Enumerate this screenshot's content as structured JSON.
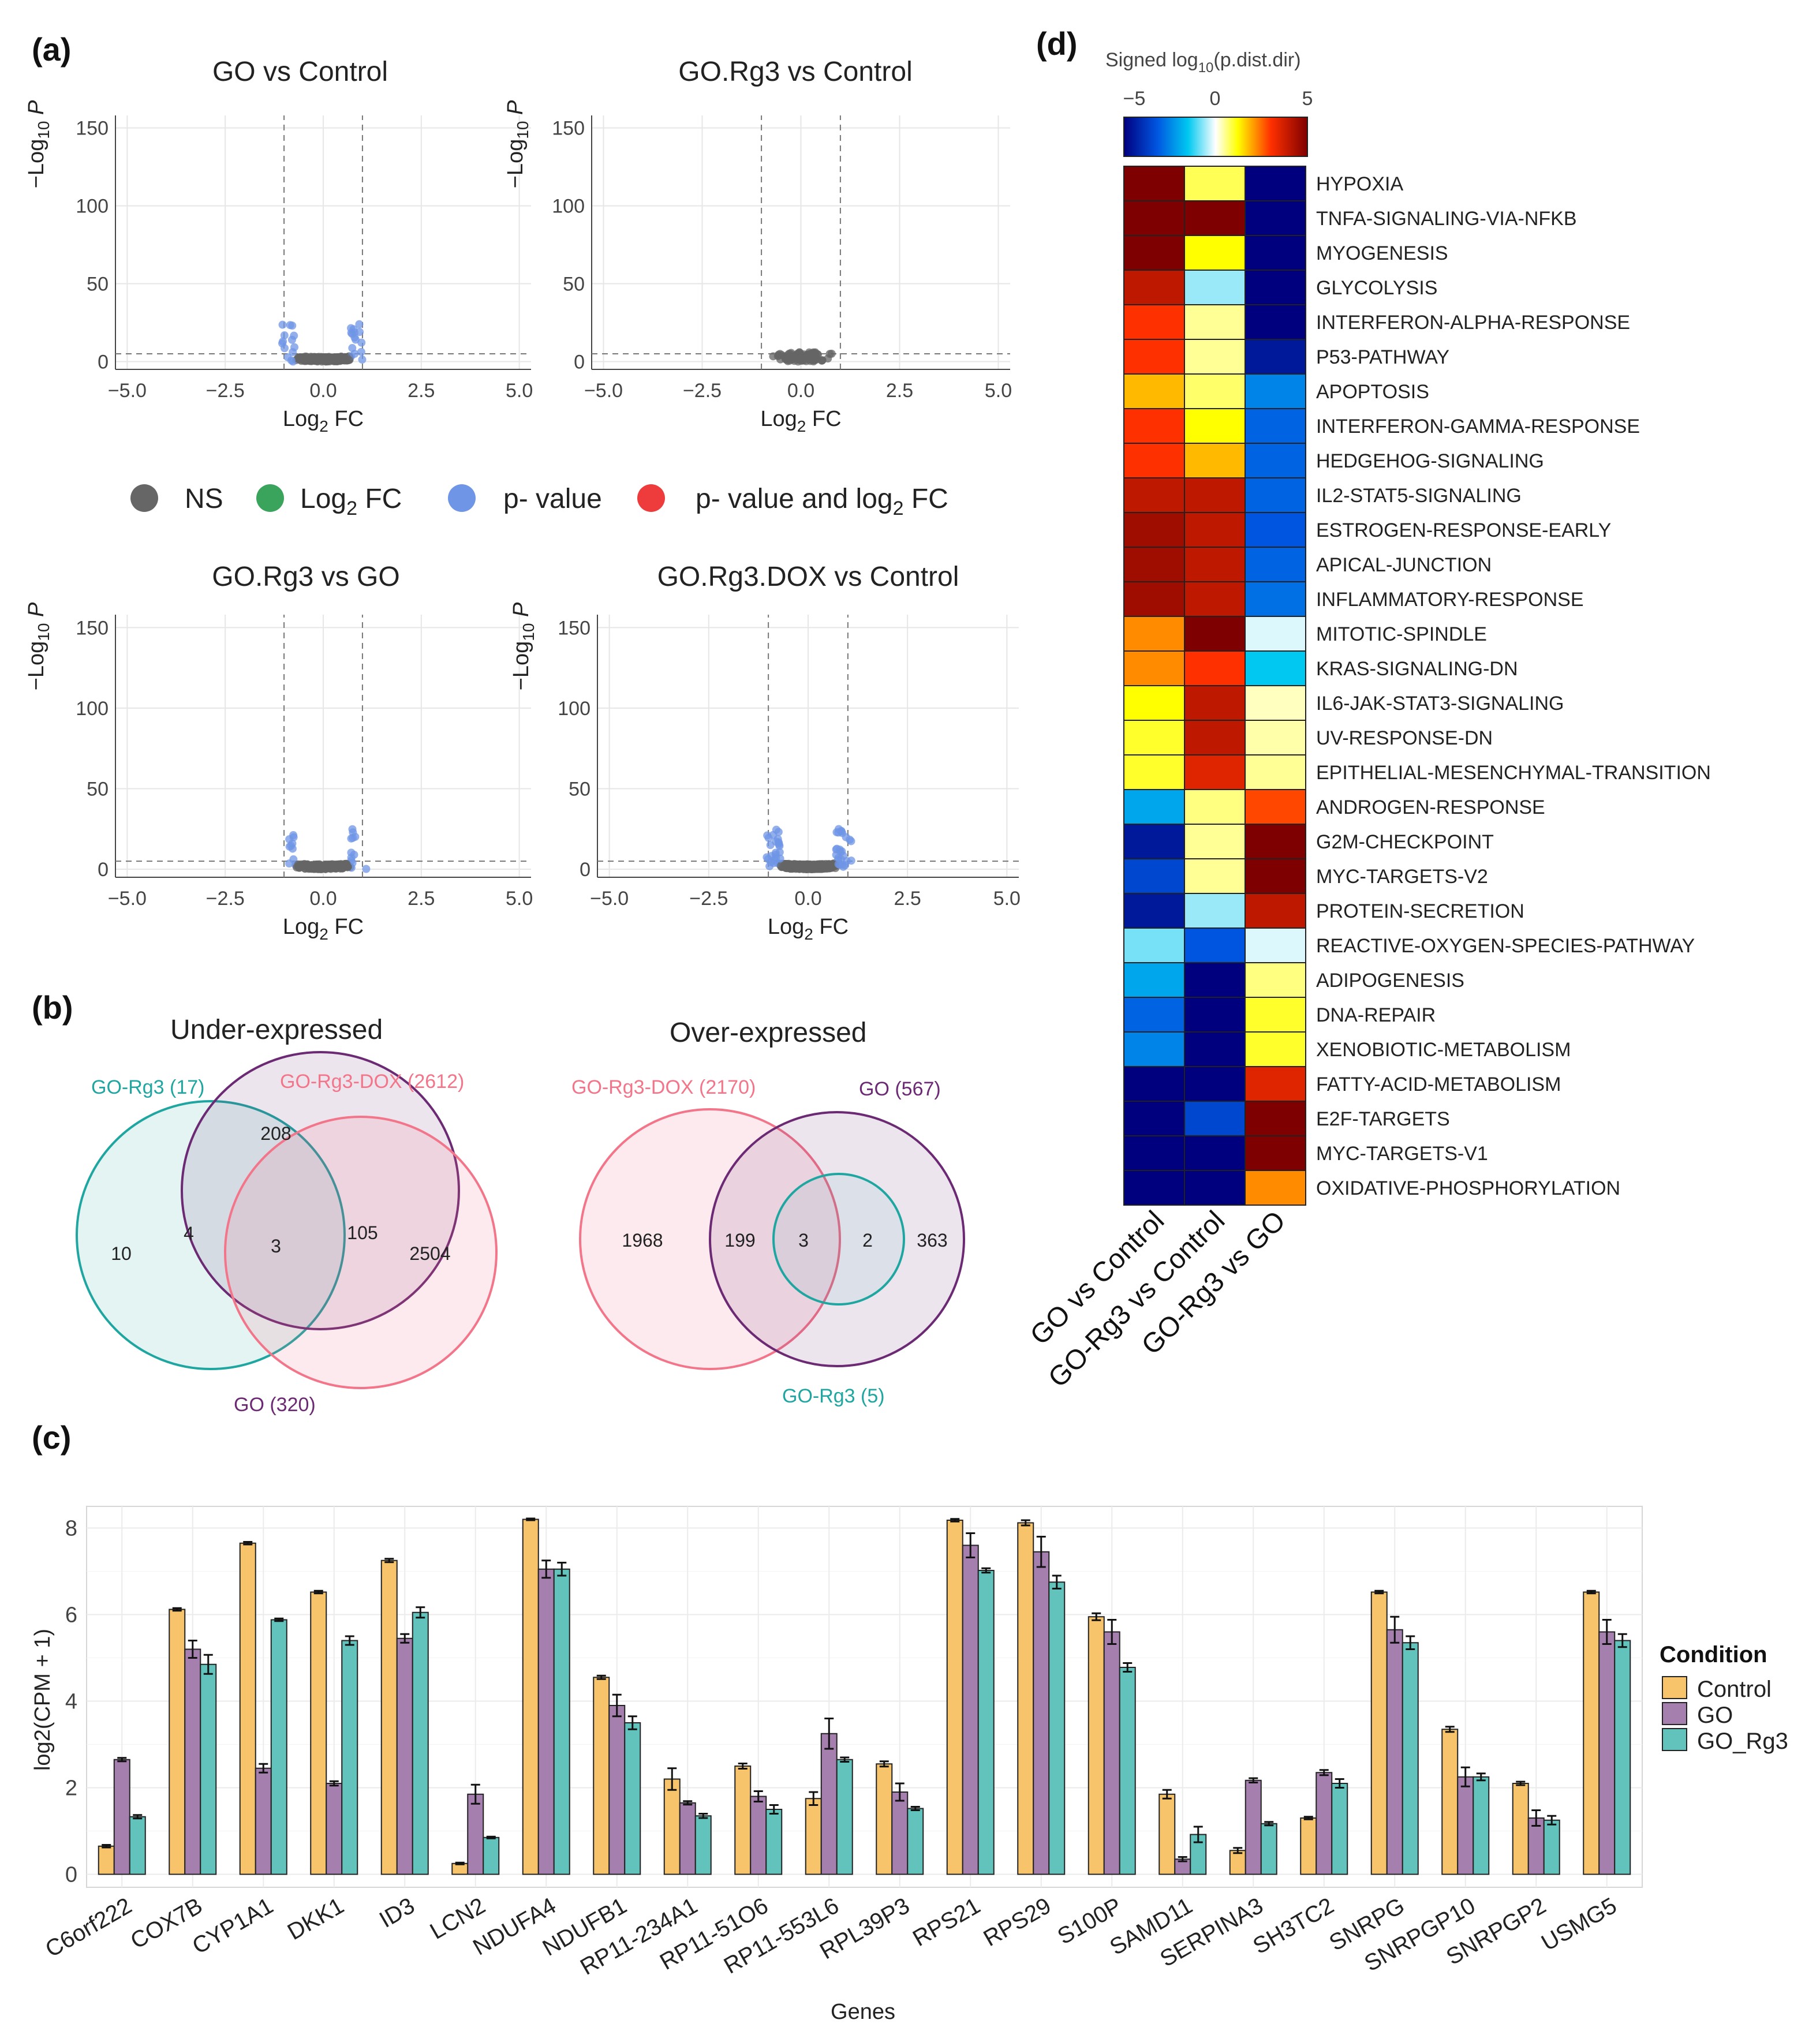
{
  "panels": {
    "a": "(a)",
    "b": "(b)",
    "c": "(c)",
    "d": "(d)"
  },
  "colors": {
    "ns": "#666666",
    "log2fc": "#3aa35c",
    "pvalue": "#6f95e6",
    "both": "#ee3b3b",
    "control": "#f7c46c",
    "go": "#a57fae",
    "go_rg3": "#62c3bd",
    "teal": "#1fa6a0",
    "pink": "#f2758a",
    "purple": "#6b2a73"
  },
  "volcano": {
    "legend": {
      "ns": "NS",
      "log2fc_prefix": "Log",
      "log2fc_sub": "2",
      "log2fc_suffix": " FC",
      "pvalue": "p- value",
      "both_prefix": "p- value and log",
      "both_sub": "2",
      "both_suffix": " FC"
    },
    "ylabel_prefix": "−Log",
    "ylabel_sub": "10",
    "ylabel_suffix": " P",
    "xlabel_prefix": "Log",
    "xlabel_sub": "2",
    "xlabel_suffix": " FC",
    "xticks": [
      "−5.0",
      "−2.5",
      "0.0",
      "2.5",
      "5.0"
    ],
    "yticks": [
      "0",
      "50",
      "100",
      "150"
    ],
    "plots": [
      {
        "title": "GO vs Control"
      },
      {
        "title": "GO.Rg3 vs Control"
      },
      {
        "title": "GO.Rg3 vs GO"
      },
      {
        "title": "GO.Rg3.DOX vs Control"
      }
    ]
  },
  "venn": {
    "under": {
      "title": "Under-expressed",
      "set_a": "GO-Rg3 (17)",
      "set_b": "GO-Rg3-DOX (2612)",
      "set_c": "GO (320)",
      "counts": {
        "a_only": "10",
        "ac": "4",
        "abc": "3",
        "bc": "105",
        "b_only": "2504",
        "c_only": "208"
      }
    },
    "over": {
      "title": "Over-expressed",
      "set_a": "GO-Rg3-DOX (2170)",
      "set_b": "GO (567)",
      "set_c": "GO-Rg3 (5)",
      "counts": {
        "a_only": "1968",
        "ab": "199",
        "abc": "3",
        "bc": "2",
        "b_only": "363"
      }
    }
  },
  "chart_data": [
    {
      "type": "bar",
      "title": "",
      "xlabel": "Genes",
      "ylabel": "log2(CPM + 1)",
      "ylim": [
        -0.3,
        8.5
      ],
      "yticks": [
        "0",
        "2",
        "4",
        "6",
        "8"
      ],
      "legend_title": "Condition",
      "categories": [
        "C6orf222",
        "COX7B",
        "CYP1A1",
        "DKK1",
        "ID3",
        "LCN2",
        "NDUFA4",
        "NDUFB1",
        "RP11-234A1",
        "RP11-51O6",
        "RP11-553L6",
        "RPL39P3",
        "RPS21",
        "RPS29",
        "S100P",
        "SAMD11",
        "SERPINA3",
        "SH3TC2",
        "SNRPG",
        "SNRPGP10",
        "SNRPGP2",
        "USMG5"
      ],
      "series": [
        {
          "name": "Control",
          "values": [
            0.65,
            6.12,
            7.65,
            6.52,
            7.25,
            0.25,
            8.2,
            4.55,
            2.2,
            2.5,
            1.75,
            2.55,
            8.18,
            8.12,
            5.95,
            1.85,
            0.55,
            1.3,
            6.52,
            3.35,
            2.1,
            6.52
          ],
          "errors": [
            0.03,
            0.03,
            0.03,
            0.03,
            0.04,
            0.02,
            0.02,
            0.04,
            0.25,
            0.06,
            0.15,
            0.06,
            0.03,
            0.06,
            0.08,
            0.1,
            0.06,
            0.03,
            0.03,
            0.06,
            0.04,
            0.03
          ]
        },
        {
          "name": "GO",
          "values": [
            2.65,
            5.2,
            2.45,
            2.1,
            5.45,
            1.85,
            7.05,
            3.9,
            1.65,
            1.8,
            3.25,
            1.9,
            7.6,
            7.45,
            5.6,
            0.35,
            2.17,
            2.35,
            5.65,
            2.25,
            1.3,
            5.6
          ],
          "errors": [
            0.04,
            0.2,
            0.1,
            0.05,
            0.1,
            0.22,
            0.2,
            0.25,
            0.04,
            0.12,
            0.35,
            0.2,
            0.28,
            0.35,
            0.28,
            0.05,
            0.05,
            0.06,
            0.3,
            0.22,
            0.18,
            0.28
          ]
        },
        {
          "name": "GO_Rg3",
          "values": [
            1.33,
            4.85,
            5.88,
            5.4,
            6.05,
            0.85,
            7.05,
            3.5,
            1.35,
            1.5,
            2.65,
            1.52,
            7.02,
            6.75,
            4.78,
            0.92,
            1.17,
            2.1,
            5.35,
            2.25,
            1.25,
            5.4
          ],
          "errors": [
            0.04,
            0.22,
            0.03,
            0.1,
            0.12,
            0.02,
            0.15,
            0.15,
            0.05,
            0.1,
            0.05,
            0.04,
            0.05,
            0.15,
            0.1,
            0.18,
            0.04,
            0.1,
            0.15,
            0.08,
            0.1,
            0.15
          ]
        }
      ]
    },
    {
      "type": "heatmap",
      "title_prefix": "Signed log",
      "title_sub": "10",
      "title_suffix": "(p.dist.dir)",
      "colorbar_ticks": [
        "−5",
        "0",
        "5"
      ],
      "vlim": [
        -5,
        5
      ],
      "columns": [
        "GO vs Control",
        "GO-Rg3 vs Control",
        "GO-Rg3 vs GO"
      ],
      "rows": [
        "HYPOXIA",
        "TNFA-SIGNALING-VIA-NFKB",
        "MYOGENESIS",
        "GLYCOLYSIS",
        "INTERFERON-ALPHA-RESPONSE",
        "P53-PATHWAY",
        "APOPTOSIS",
        "INTERFERON-GAMMA-RESPONSE",
        "HEDGEHOG-SIGNALING",
        "IL2-STAT5-SIGNALING",
        "ESTROGEN-RESPONSE-EARLY",
        "APICAL-JUNCTION",
        "INFLAMMATORY-RESPONSE",
        "MITOTIC-SPINDLE",
        "KRAS-SIGNALING-DN",
        "IL6-JAK-STAT3-SIGNALING",
        "UV-RESPONSE-DN",
        "EPITHELIAL-MESENCHYMAL-TRANSITION",
        "ANDROGEN-RESPONSE",
        "G2M-CHECKPOINT",
        "MYC-TARGETS-V2",
        "PROTEIN-SECRETION",
        "REACTIVE-OXYGEN-SPECIES-PATHWAY",
        "ADIPOGENESIS",
        "DNA-REPAIR",
        "XENOBIOTIC-METABOLISM",
        "FATTY-ACID-METABOLISM",
        "E2F-TARGETS",
        "MYC-TARGETS-V1",
        "OXIDATIVE-PHOSPHORYLATION"
      ],
      "values": [
        [
          5,
          0.8,
          -5
        ],
        [
          5,
          5,
          -5
        ],
        [
          5,
          1.2,
          -5
        ],
        [
          4,
          -0.6,
          -5
        ],
        [
          3,
          0.5,
          -5
        ],
        [
          3,
          0.5,
          -4.5
        ],
        [
          1.8,
          0.7,
          -2.5
        ],
        [
          3,
          1.2,
          -3
        ],
        [
          3,
          1.8,
          -3
        ],
        [
          4,
          4,
          -3
        ],
        [
          4.5,
          4,
          -3.2
        ],
        [
          4.5,
          4,
          -3
        ],
        [
          4.5,
          4,
          -2.8
        ],
        [
          2.2,
          5,
          -0.2
        ],
        [
          2.2,
          3,
          -1.5
        ],
        [
          1.2,
          4,
          0.3
        ],
        [
          1,
          4,
          0.4
        ],
        [
          1,
          3.5,
          0.5
        ],
        [
          -2,
          0.6,
          2.8
        ],
        [
          -4.5,
          0.5,
          5
        ],
        [
          -3.5,
          0.5,
          5
        ],
        [
          -4.5,
          -0.6,
          4
        ],
        [
          -0.8,
          -3.2,
          -0.2
        ],
        [
          -2,
          -5,
          0.6
        ],
        [
          -3,
          -5,
          1
        ],
        [
          -2.5,
          -5,
          1
        ],
        [
          -5,
          -5,
          3.5
        ],
        [
          -5,
          -3.5,
          5
        ],
        [
          -5,
          -5,
          5
        ],
        [
          -5,
          -5,
          2.2
        ]
      ]
    }
  ]
}
